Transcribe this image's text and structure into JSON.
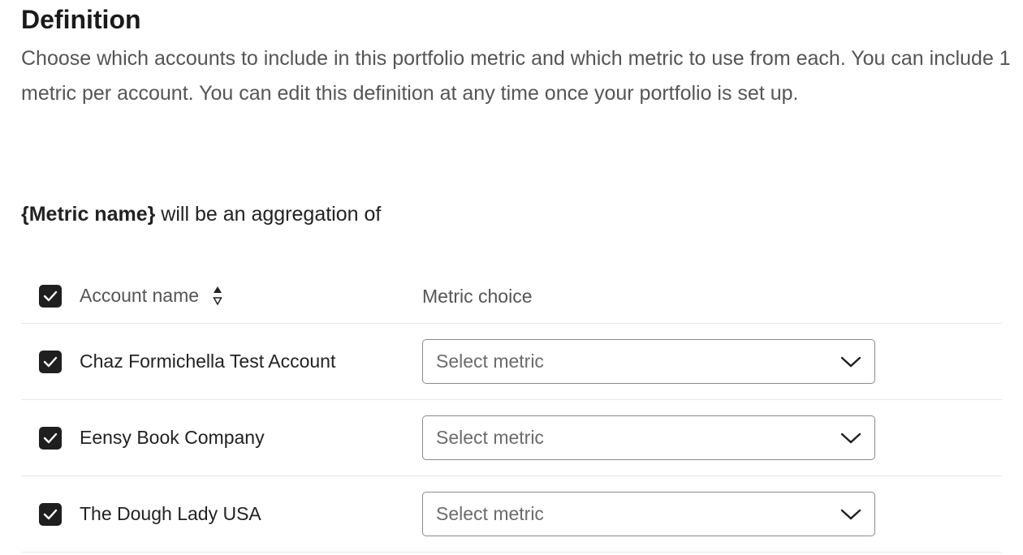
{
  "title": "Definition",
  "description": "Choose which accounts to include in this portfolio metric and which metric to use from each. You can include 1 metric per account. You can edit this definition at any time once your portfolio is set up.",
  "aggregation": {
    "metric_name": "{Metric name}",
    "suffix": " will be an aggregation of"
  },
  "table": {
    "headers": {
      "account": "Account name",
      "metric": "Metric choice",
      "sort_icon": "sort-icon"
    },
    "select_all_checked": true,
    "rows": [
      {
        "account": "Chaz Formichella Test Account",
        "checked": true,
        "metric_placeholder": "Select metric"
      },
      {
        "account": "Eensy Book Company",
        "checked": true,
        "metric_placeholder": "Select metric"
      },
      {
        "account": "The Dough Lady USA",
        "checked": true,
        "metric_placeholder": "Select metric"
      }
    ]
  },
  "colors": {
    "checkbox": "#1f1f1f",
    "text": "#1f1f1f",
    "muted": "#555555",
    "border": "#8a8a8a"
  }
}
